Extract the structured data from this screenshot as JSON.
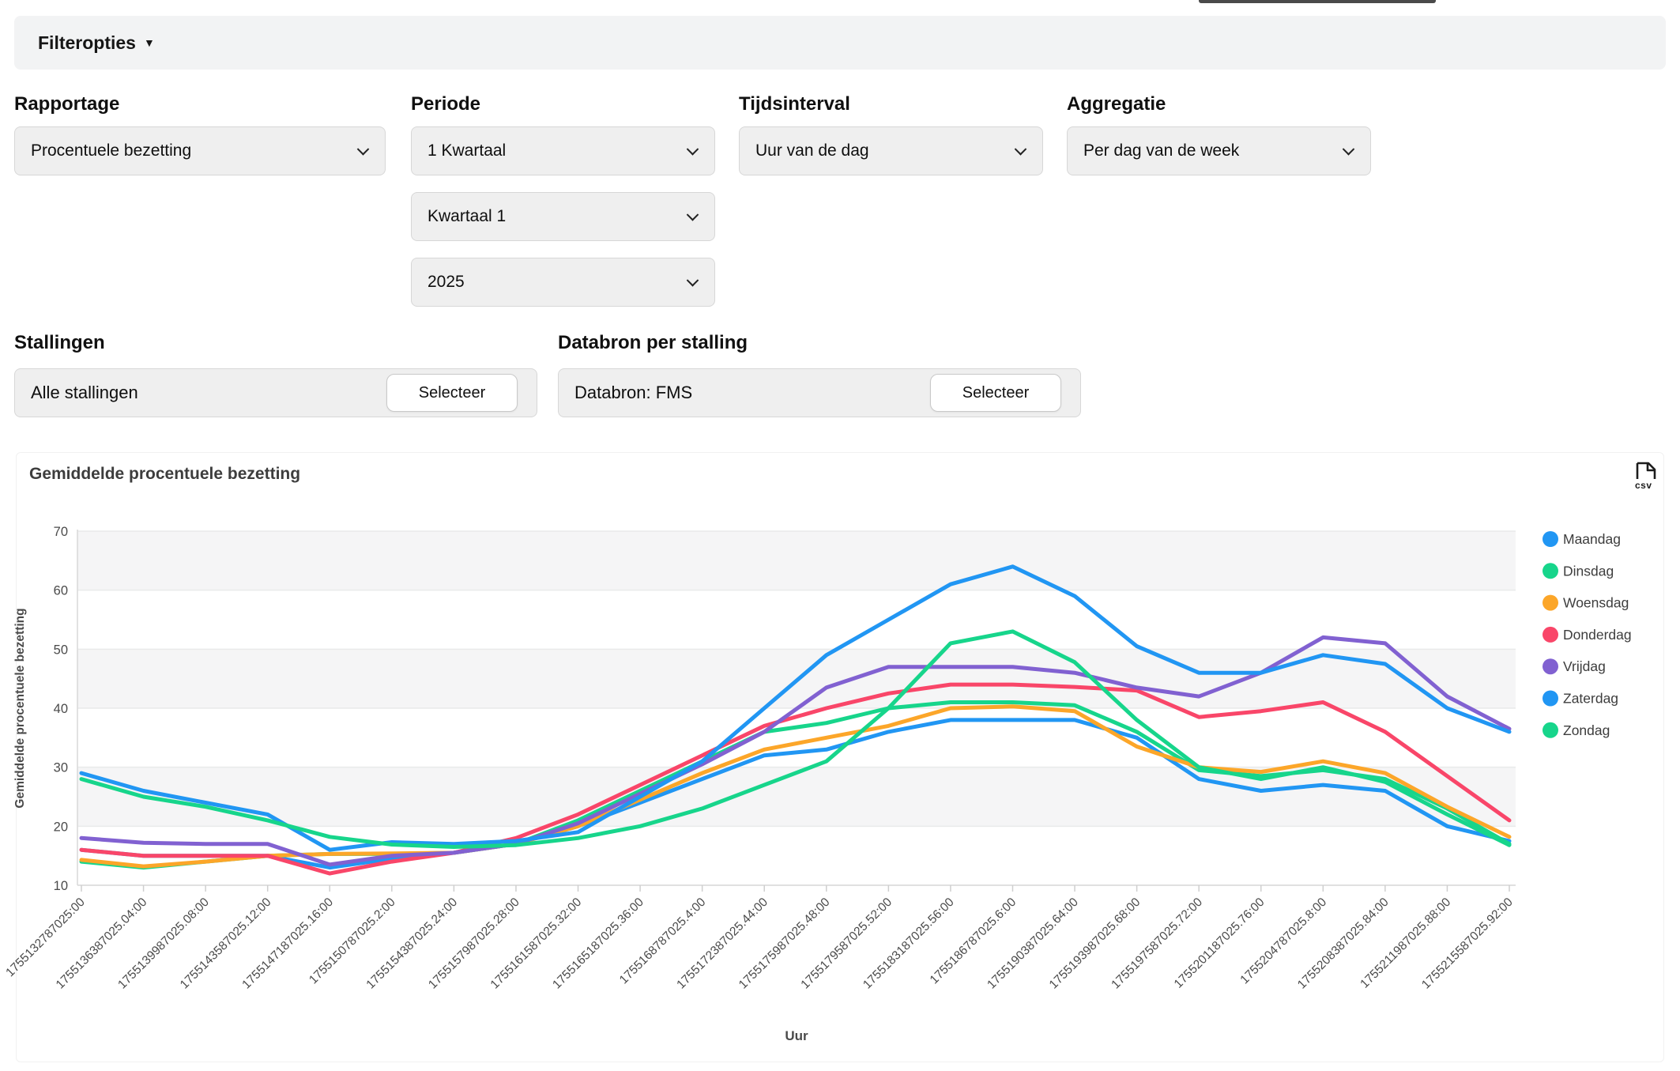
{
  "filter_bar": {
    "label": "Filteropties",
    "arrow": "▼"
  },
  "filters": {
    "rapportage": {
      "label": "Rapportage",
      "value": "Procentuele bezetting"
    },
    "periode": {
      "label": "Periode",
      "value": "1 Kwartaal",
      "quarter": "Kwartaal 1",
      "year": "2025"
    },
    "tijdsinterval": {
      "label": "Tijdsinterval",
      "value": "Uur van de dag"
    },
    "aggregatie": {
      "label": "Aggregatie",
      "value": "Per dag van de week"
    }
  },
  "stallingen": {
    "label": "Stallingen",
    "value": "Alle stallingen",
    "button": "Selecteer"
  },
  "databron": {
    "label": "Databron per stalling",
    "value": "Databron: FMS",
    "button": "Selecteer"
  },
  "chart": {
    "title": "Gemiddelde procentuele bezetting",
    "csv_label": "csv"
  },
  "chart_data": {
    "type": "line",
    "title": "Gemiddelde procentuele bezetting",
    "xlabel": "Uur",
    "ylabel": "Gemiddelde procentuele bezetting",
    "ylim": [
      10,
      70
    ],
    "yticks": [
      70,
      60,
      50,
      40,
      30,
      20,
      10
    ],
    "grid": "horizontal-bands",
    "legend_position": "right",
    "x_labels": [
      "1755132787025:00",
      "1755136387025.04:00",
      "1755139987025.08:00",
      "1755143587025.12:00",
      "1755147187025.16:00",
      "1755150787025.2:00",
      "1755154387025.24:00",
      "1755157987025.28:00",
      "1755161587025.32:00",
      "1755165187025.36:00",
      "1755168787025.4:00",
      "1755172387025.44:00",
      "1755175987025.48:00",
      "1755179587025.52:00",
      "1755183187025.56:00",
      "1755186787025.6:00",
      "1755190387025.64:00",
      "1755193987025.68:00",
      "1755197587025.72:00",
      "1755201187025.76:00",
      "1755204787025.8:00",
      "1755208387025.84:00",
      "1755211987025.88:00",
      "1755215587025.92:00"
    ],
    "series": [
      {
        "name": "Maandag",
        "color": "#2196F3",
        "values": [
          16,
          15,
          15,
          15,
          13,
          14.5,
          15.5,
          17,
          20,
          24,
          28,
          32,
          33,
          36,
          38,
          38,
          38,
          35,
          28,
          26,
          27,
          26,
          20,
          17.5
        ]
      },
      {
        "name": "Dinsdag",
        "color": "#17D58B",
        "values": [
          14,
          13,
          14,
          15,
          15.3,
          15.3,
          15.5,
          17,
          21,
          26,
          31,
          36,
          37.5,
          40,
          41,
          41,
          40.5,
          36,
          29.5,
          28.5,
          29.5,
          28,
          23,
          17
        ]
      },
      {
        "name": "Woensdag",
        "color": "#FCA629",
        "values": [
          14.3,
          13.2,
          14,
          15,
          15.3,
          15.4,
          15.5,
          17,
          20,
          24.5,
          29,
          33,
          35,
          37,
          40,
          40.3,
          39.5,
          33.5,
          30,
          29.2,
          31,
          29,
          23.3,
          18.2
        ]
      },
      {
        "name": "Donderdag",
        "color": "#F94669",
        "values": [
          16,
          15,
          15,
          15,
          12,
          14,
          15.5,
          18,
          22,
          27,
          32,
          37,
          40,
          42.5,
          44,
          44,
          43.6,
          43,
          38.5,
          39.5,
          41,
          36,
          28.5,
          21
        ]
      },
      {
        "name": "Vrijdag",
        "color": "#8161D1",
        "values": [
          18,
          17.2,
          17,
          17,
          13.5,
          15,
          15.5,
          17,
          20.5,
          25.5,
          30.5,
          36,
          43.5,
          47,
          47,
          47,
          46,
          43.5,
          42,
          46,
          52,
          51,
          42,
          36.5
        ]
      },
      {
        "name": "Zaterdag",
        "color": "#2196F3",
        "values": [
          29,
          26,
          24,
          22,
          16,
          17.3,
          17,
          17.5,
          19,
          25,
          31,
          40,
          49,
          55,
          61,
          64,
          59,
          50.5,
          46,
          46,
          49,
          47.5,
          40,
          36
        ]
      },
      {
        "name": "Zondag",
        "color": "#17D58B",
        "values": [
          28,
          25,
          23.3,
          21,
          18.2,
          16.9,
          16.5,
          16.8,
          18,
          20,
          23,
          27,
          31,
          40,
          51,
          53,
          47.8,
          38,
          30,
          28,
          30,
          27.5,
          22,
          16.8
        ]
      }
    ]
  }
}
